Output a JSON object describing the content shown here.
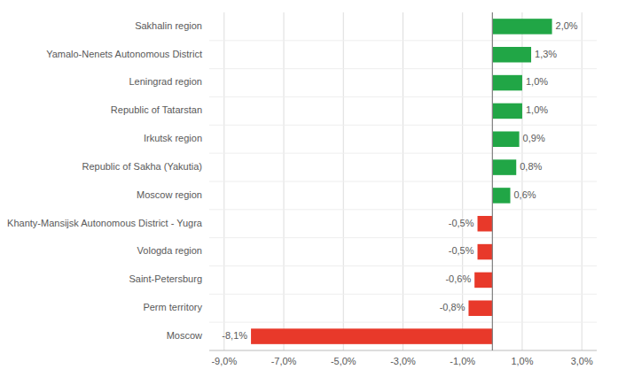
{
  "chart_data": {
    "type": "bar",
    "orientation": "horizontal",
    "categories": [
      "Moscow",
      "Perm territory",
      "Saint-Petersburg",
      "Vologda region",
      "Khanty-Mansijsk Autonomous District - Yugra",
      "Moscow region",
      "Republic of Sakha (Yakutia)",
      "Irkutsk region",
      "Republic of Tatarstan",
      "Leningrad region",
      "Yamalo-Nenets Autonomous District",
      "Sakhalin region"
    ],
    "values": [
      -8.1,
      -0.8,
      -0.6,
      -0.5,
      -0.5,
      0.6,
      0.8,
      0.9,
      1.0,
      1.0,
      1.3,
      2.0
    ],
    "value_labels": [
      "-8,1%",
      "-0,8%",
      "-0,6%",
      "-0,5%",
      "-0,5%",
      "0,6%",
      "0,8%",
      "0,9%",
      "1,0%",
      "1,0%",
      "1,3%",
      "2,0%"
    ],
    "data_labels": true,
    "colors": [
      "#E8392A",
      "#E8392A",
      "#E8392A",
      "#E8392A",
      "#E8392A",
      "#21A646",
      "#21A646",
      "#21A646",
      "#21A646",
      "#21A646",
      "#21A646",
      "#21A646"
    ],
    "xlim": [
      -9.5,
      3.5
    ],
    "xticks": [
      {
        "value": -9.0,
        "label": "-9,0%"
      },
      {
        "value": -7.0,
        "label": "-7,0%"
      },
      {
        "value": -5.0,
        "label": "-5,0%"
      },
      {
        "value": -3.0,
        "label": "-3,0%"
      },
      {
        "value": -1.0,
        "label": "-1,0%"
      },
      {
        "value": 1.0,
        "label": "1,0%"
      },
      {
        "value": 3.0,
        "label": "3,0%"
      }
    ],
    "grid": true
  }
}
